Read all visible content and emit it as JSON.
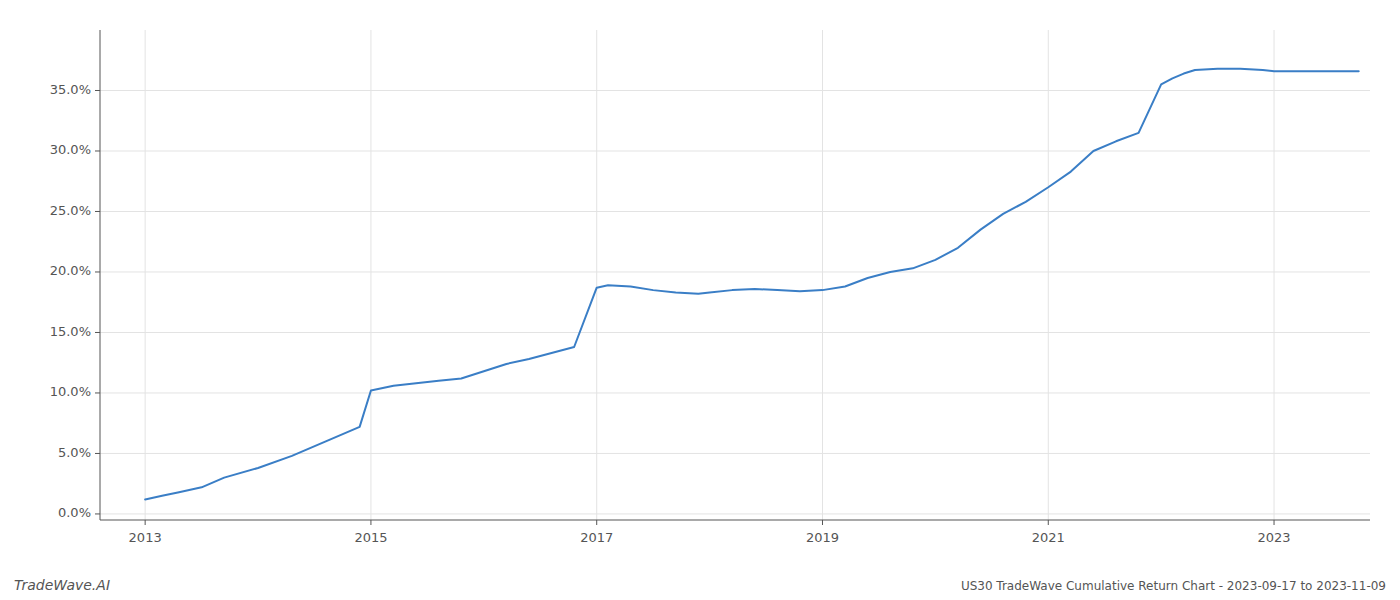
{
  "chart_data": {
    "type": "line",
    "title": "US30 TradeWave Cumulative Return Chart - 2023-09-17 to 2023-11-09",
    "annotations": [
      "TradeWave.AI"
    ],
    "x": [
      2013.0,
      2013.15,
      2013.3,
      2013.5,
      2013.7,
      2014.0,
      2014.3,
      2014.6,
      2014.9,
      2015.0,
      2015.2,
      2015.4,
      2015.6,
      2015.8,
      2016.0,
      2016.2,
      2016.4,
      2016.6,
      2016.8,
      2017.0,
      2017.1,
      2017.3,
      2017.5,
      2017.7,
      2017.9,
      2018.0,
      2018.2,
      2018.4,
      2018.6,
      2018.8,
      2019.0,
      2019.2,
      2019.4,
      2019.6,
      2019.8,
      2020.0,
      2020.2,
      2020.4,
      2020.6,
      2020.8,
      2021.0,
      2021.2,
      2021.4,
      2021.6,
      2021.8,
      2022.0,
      2022.1,
      2022.2,
      2022.3,
      2022.5,
      2022.7,
      2022.9,
      2023.0,
      2023.2,
      2023.5,
      2023.75
    ],
    "values": [
      0.012,
      0.015,
      0.018,
      0.022,
      0.03,
      0.038,
      0.048,
      0.06,
      0.072,
      0.102,
      0.106,
      0.108,
      0.11,
      0.112,
      0.118,
      0.124,
      0.128,
      0.133,
      0.138,
      0.187,
      0.189,
      0.188,
      0.185,
      0.183,
      0.182,
      0.183,
      0.185,
      0.186,
      0.185,
      0.184,
      0.185,
      0.188,
      0.195,
      0.2,
      0.203,
      0.21,
      0.22,
      0.235,
      0.248,
      0.258,
      0.27,
      0.283,
      0.3,
      0.308,
      0.315,
      0.355,
      0.36,
      0.364,
      0.367,
      0.368,
      0.368,
      0.367,
      0.366,
      0.366,
      0.366,
      0.366
    ],
    "color": "#3a7ec6",
    "xlim": [
      2012.6,
      2023.85
    ],
    "ylim": [
      -0.005,
      0.4
    ],
    "xticks": [
      2013,
      2015,
      2017,
      2019,
      2021,
      2023
    ],
    "yticks": [
      {
        "value": 0.0,
        "label": "0.0%"
      },
      {
        "value": 0.05,
        "label": "5.0%"
      },
      {
        "value": 0.1,
        "label": "10.0%"
      },
      {
        "value": 0.15,
        "label": "15.0%"
      },
      {
        "value": 0.2,
        "label": "20.0%"
      },
      {
        "value": 0.25,
        "label": "25.0%"
      },
      {
        "value": 0.3,
        "label": "30.0%"
      },
      {
        "value": 0.35,
        "label": "35.0%"
      }
    ],
    "grid": true
  }
}
